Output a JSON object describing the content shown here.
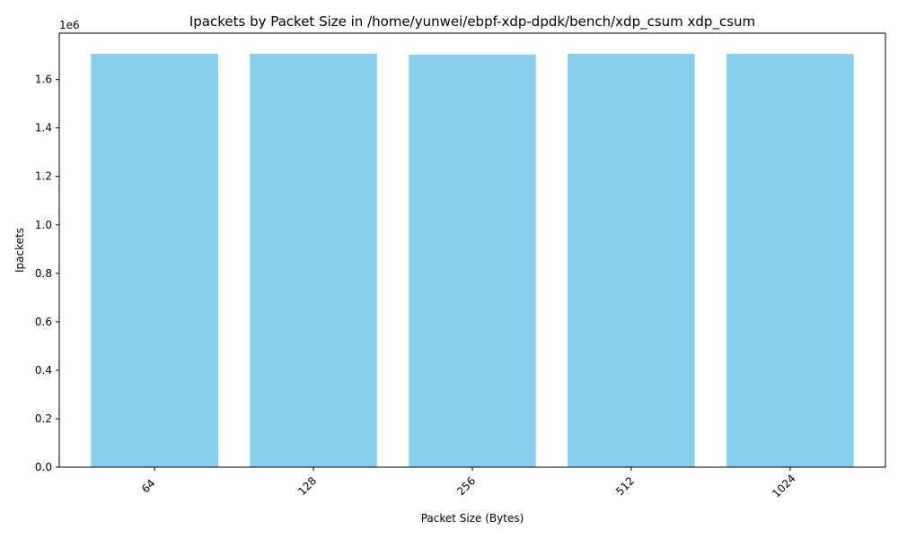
{
  "chart_data": {
    "type": "bar",
    "title": "Ipackets by Packet Size in /home/yunwei/ebpf-xdp-dpdk/bench/xdp_csum xdp_csum",
    "xlabel": "Packet Size (Bytes)",
    "ylabel": "Ipackets",
    "y_offset_label": "1e6",
    "categories": [
      "64",
      "128",
      "256",
      "512",
      "1024"
    ],
    "values": [
      1706000,
      1706000,
      1703000,
      1706000,
      1706000
    ],
    "ylim": [
      0,
      1791000
    ],
    "yticks": [
      0,
      200000,
      400000,
      600000,
      800000,
      1000000,
      1200000,
      1400000,
      1600000
    ],
    "ytick_labels": [
      "0.0",
      "0.2",
      "0.4",
      "0.6",
      "0.8",
      "1.0",
      "1.2",
      "1.4",
      "1.6"
    ],
    "bar_color": "#87CEEB",
    "grid": false,
    "legend": "none"
  }
}
